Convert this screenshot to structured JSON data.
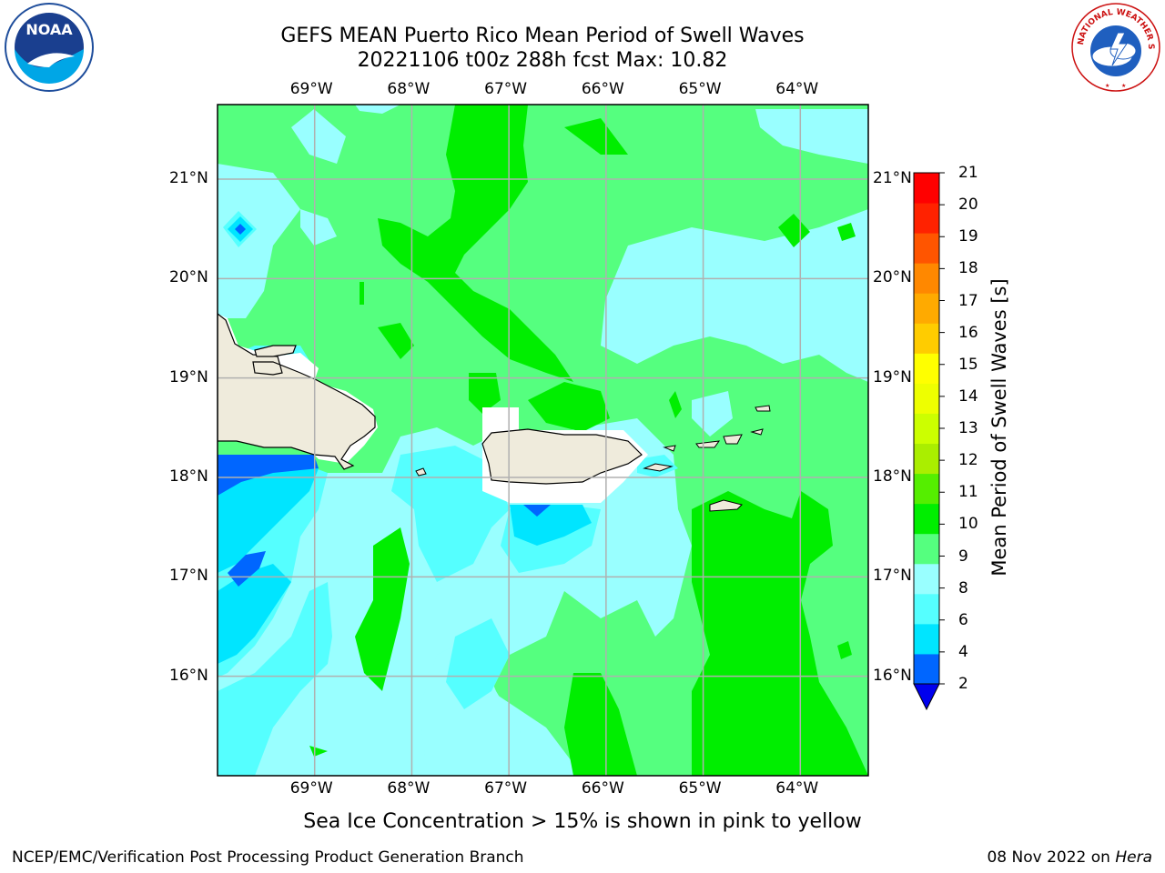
{
  "header": {
    "title_line1": "GEFS MEAN Puerto Rico Mean Period of Swell Waves",
    "title_line2": "20221106 t00z 288h fcst   Max: 10.82"
  },
  "map": {
    "lon_labels": [
      "69°W",
      "68°W",
      "67°W",
      "66°W",
      "65°W",
      "64°W"
    ],
    "lat_labels": [
      "21°N",
      "20°N",
      "19°N",
      "18°N",
      "17°N",
      "16°N"
    ],
    "lon_values": [
      -69,
      -68,
      -67,
      -66,
      -65,
      -64
    ],
    "lat_values": [
      21,
      20,
      19,
      18,
      17,
      16
    ],
    "extent": {
      "lon_min": -70.0,
      "lon_max": -63.3,
      "lat_min": 15.0,
      "lat_max": 21.75
    },
    "colors": {
      "period_2_4": "#0066ff",
      "period_4_6": "#00e5ff",
      "period_6_8": "#55ffff",
      "period_8_9": "#99ffff",
      "period_9_10": "#55ff7f",
      "period_10_11": "#00ee00",
      "land": "#efebdc",
      "gridline": "#b0b0b0"
    }
  },
  "colorbar": {
    "label": "Mean Period of Swell Waves [s]",
    "ticks": [
      "21",
      "20",
      "19",
      "18",
      "17",
      "16",
      "15",
      "14",
      "13",
      "12",
      "11",
      "10",
      "9",
      "8",
      "6",
      "4",
      "2"
    ],
    "levels": [
      {
        "from": 2,
        "to": 4,
        "color": "#0066ff"
      },
      {
        "from": 4,
        "to": 6,
        "color": "#00e5ff"
      },
      {
        "from": 6,
        "to": 8,
        "color": "#55ffff"
      },
      {
        "from": 8,
        "to": 9,
        "color": "#99ffff"
      },
      {
        "from": 9,
        "to": 10,
        "color": "#55ff7f"
      },
      {
        "from": 10,
        "to": 11,
        "color": "#00ee00"
      },
      {
        "from": 11,
        "to": 12,
        "color": "#55ee00"
      },
      {
        "from": 12,
        "to": 13,
        "color": "#aaee00"
      },
      {
        "from": 13,
        "to": 14,
        "color": "#ccff00"
      },
      {
        "from": 14,
        "to": 15,
        "color": "#eeff00"
      },
      {
        "from": 15,
        "to": 16,
        "color": "#ffff00"
      },
      {
        "from": 16,
        "to": 17,
        "color": "#ffcc00"
      },
      {
        "from": 17,
        "to": 18,
        "color": "#ffaa00"
      },
      {
        "from": 18,
        "to": 19,
        "color": "#ff8800"
      },
      {
        "from": 19,
        "to": 20,
        "color": "#ff5500"
      },
      {
        "from": 20,
        "to": 21,
        "color": "#ff2200"
      },
      {
        "from": 21,
        "to": 22,
        "color": "#ff0000"
      }
    ],
    "under_color": "#0000ee"
  },
  "note": "Sea Ice Concentration > 15% is shown in pink to yellow",
  "footer": {
    "left": "NCEP/EMC/Verification Post Processing Product Generation Branch",
    "right_date": "08 Nov 2022 on ",
    "right_machine": "Hera"
  },
  "logos": {
    "noaa_text": "NOAA",
    "nws_text": "NATIONAL WEATHER SERVICE"
  }
}
